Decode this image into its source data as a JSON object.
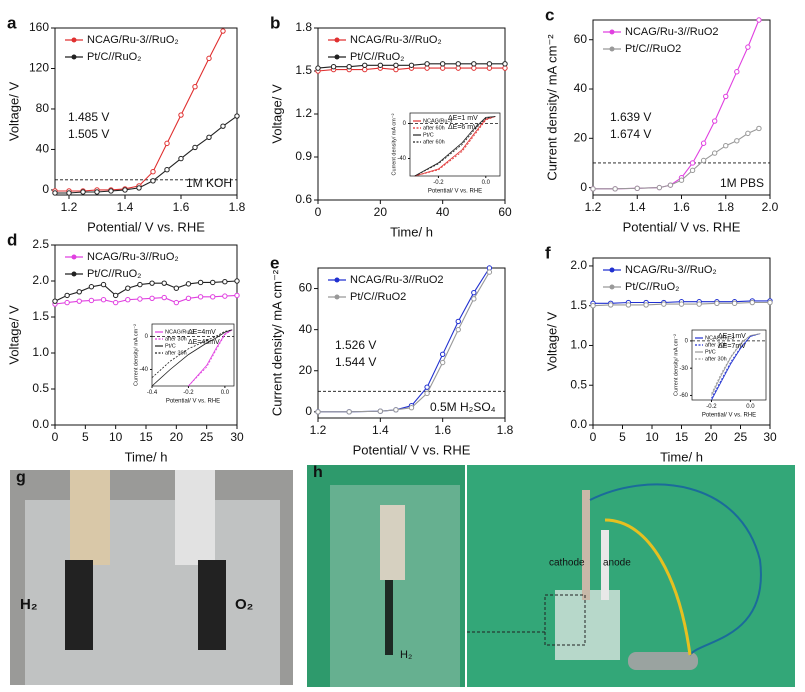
{
  "chart_data": [
    {
      "type": "line",
      "label": "a",
      "xlabel": "Potential/ V vs. RHE",
      "ylabel": "Voltage/ V",
      "xlim": [
        1.15,
        1.8
      ],
      "ylim": [
        -5,
        160
      ],
      "xticks": [
        1.2,
        1.4,
        1.6,
        1.8
      ],
      "yticks": [
        0,
        40,
        80,
        120,
        160
      ],
      "hline": 10,
      "x": [
        1.15,
        1.2,
        1.25,
        1.3,
        1.35,
        1.4,
        1.45,
        1.5,
        1.55,
        1.6,
        1.65,
        1.7,
        1.75,
        1.8
      ],
      "series": [
        {
          "name": "NCAG/Ru-3//RuO₂",
          "color": "#e03030",
          "marker": "circle",
          "values": [
            -1,
            -1,
            -1,
            0,
            0,
            1,
            4,
            18,
            46,
            74,
            102,
            130,
            157,
            null
          ]
        },
        {
          "name": "Pt/C//RuO₂",
          "color": "#222222",
          "marker": "circle",
          "values": [
            -3,
            -3,
            -2,
            -2,
            -1,
            0,
            2,
            9,
            20,
            31,
            42,
            52,
            63,
            73
          ]
        }
      ],
      "annotations": [
        {
          "text": "1.485 V",
          "color": "#e03030"
        },
        {
          "text": "1.505 V",
          "color": "#222222"
        },
        {
          "text": "1M KOH",
          "color": "#222222"
        }
      ]
    },
    {
      "type": "line",
      "label": "b",
      "xlabel": "Time/ h",
      "ylabel": "Voltage/ V",
      "xlim": [
        0,
        60
      ],
      "ylim": [
        0.6,
        1.8
      ],
      "xticks": [
        0,
        20,
        40,
        60
      ],
      "yticks": [
        0.6,
        0.9,
        1.2,
        1.5,
        1.8
      ],
      "x": [
        0,
        5,
        10,
        15,
        20,
        25,
        30,
        35,
        40,
        45,
        50,
        55,
        60
      ],
      "series": [
        {
          "name": "NCAG/Ru-3//RuO₂",
          "color": "#e03030",
          "marker": "circle",
          "values": [
            1.5,
            1.51,
            1.51,
            1.51,
            1.52,
            1.51,
            1.52,
            1.52,
            1.52,
            1.52,
            1.52,
            1.52,
            1.52
          ]
        },
        {
          "name": "Pt/C//RuO₂",
          "color": "#222222",
          "marker": "circle",
          "values": [
            1.52,
            1.53,
            1.53,
            1.54,
            1.54,
            1.54,
            1.54,
            1.55,
            1.55,
            1.55,
            1.55,
            1.55,
            1.55
          ]
        }
      ],
      "inset": {
        "type": "line",
        "xlabel": "Potential/ V vs. RHE",
        "ylabel": "Current density/ mA cm⁻²",
        "xlim": [
          -0.32,
          0.06
        ],
        "ylim": [
          -60,
          12
        ],
        "xticks": [
          -0.2,
          {
            "value": 0,
            "label": "0.0"
          }
        ],
        "yticks": [
          0,
          -40
        ],
        "hline": 0,
        "x": [
          -0.3,
          -0.2,
          -0.1,
          -0.05,
          0,
          0.04
        ],
        "series": [
          {
            "name": "NCAG/Ru-3",
            "color": "#e03030",
            "values": [
              -60,
              -52,
              -30,
              -12,
              5,
              8
            ]
          },
          {
            "name": "after 60h",
            "color": "#e03030",
            "dash": true,
            "values": [
              -60,
              -53,
              -32,
              -14,
              4,
              8
            ]
          },
          {
            "name": "Pt/C",
            "color": "#222222",
            "values": [
              -60,
              -45,
              -22,
              -6,
              7,
              8
            ]
          },
          {
            "name": "after 60h",
            "color": "#222222",
            "dash": true,
            "values": [
              -60,
              -46,
              -24,
              -8,
              6,
              8
            ]
          }
        ],
        "annotations": [
          {
            "text": "ΔE=1 mV",
            "color": "#e03030"
          },
          {
            "text": "ΔE=6 mV",
            "color": "#222222"
          }
        ]
      }
    },
    {
      "type": "line",
      "label": "c",
      "xlabel": "Potential/ V vs. RHE",
      "ylabel": "Current density/ mA cm⁻²",
      "xlim": [
        1.2,
        2.0
      ],
      "ylim": [
        -3,
        68
      ],
      "xticks": [
        1.2,
        1.4,
        1.6,
        1.8,
        {
          "value": 2,
          "label": "2.0"
        }
      ],
      "yticks": [
        0,
        20,
        40,
        60
      ],
      "hline": 10,
      "x": [
        1.2,
        1.3,
        1.4,
        1.5,
        1.55,
        1.6,
        1.65,
        1.7,
        1.75,
        1.8,
        1.85,
        1.9,
        1.95
      ],
      "series": [
        {
          "name": "NCAG/Ru-3//RuO2",
          "color": "#e040e0",
          "marker": "circle",
          "values": [
            -0.5,
            -0.5,
            -0.3,
            0,
            1,
            4,
            10,
            18,
            27,
            37,
            47,
            57,
            68
          ]
        },
        {
          "name": "Pt/C//RuO2",
          "color": "#999999",
          "marker": "circle",
          "values": [
            -0.5,
            -0.5,
            -0.3,
            0,
            1,
            3,
            7,
            11,
            14,
            17,
            19,
            22,
            24
          ]
        }
      ],
      "annotations": [
        {
          "text": "1.639 V",
          "color": "#e040e0"
        },
        {
          "text": "1.674 V",
          "color": "#222222"
        },
        {
          "text": "1M PBS",
          "color": "#222222"
        }
      ]
    },
    {
      "type": "line",
      "label": "d",
      "xlabel": "Time/ h",
      "ylabel": "Voltage/ V",
      "xlim": [
        0,
        30
      ],
      "ylim": [
        0,
        2.5
      ],
      "xticks": [
        0,
        5,
        10,
        15,
        20,
        25,
        30
      ],
      "yticks": [
        {
          "value": 0,
          "label": "0.0"
        },
        0.5,
        {
          "value": 1,
          "label": "1.0"
        },
        1.5,
        {
          "value": 2,
          "label": "2.0"
        },
        2.5
      ],
      "x": [
        0,
        2,
        4,
        6,
        8,
        10,
        12,
        14,
        16,
        18,
        20,
        22,
        24,
        26,
        28,
        30
      ],
      "series": [
        {
          "name": "NCAG/Ru-3//RuO₂",
          "color": "#e040e0",
          "marker": "circle",
          "values": [
            1.68,
            1.7,
            1.72,
            1.73,
            1.74,
            1.7,
            1.74,
            1.75,
            1.76,
            1.77,
            1.7,
            1.76,
            1.78,
            1.78,
            1.79,
            1.8
          ]
        },
        {
          "name": "Pt/C//RuO₂",
          "color": "#222222",
          "marker": "circle",
          "values": [
            1.72,
            1.8,
            1.85,
            1.92,
            1.95,
            1.8,
            1.9,
            1.95,
            1.97,
            1.97,
            1.9,
            1.96,
            1.98,
            1.98,
            1.99,
            2.0
          ]
        }
      ],
      "inset": {
        "type": "line",
        "xlabel": "Potential/ V vs. RHE",
        "ylabel": "Current density/ mA cm⁻²",
        "xlim": [
          -0.4,
          0.05
        ],
        "ylim": [
          -60,
          15
        ],
        "xticks": [
          -0.4,
          -0.2,
          {
            "value": 0,
            "label": "0.0"
          }
        ],
        "yticks": [
          0,
          -40
        ],
        "hline": 0,
        "x": [
          -0.4,
          -0.3,
          -0.2,
          -0.1,
          -0.05,
          0,
          0.04
        ],
        "series": [
          {
            "name": "NCAG/Ru-3",
            "color": "#e040e0",
            "values": [
              null,
              null,
              -60,
              -35,
              -15,
              3,
              8
            ]
          },
          {
            "name": "after 30h",
            "color": "#e040e0",
            "dash": true,
            "values": [
              null,
              null,
              -60,
              -37,
              -17,
              2,
              8
            ]
          },
          {
            "name": "Pt/C",
            "color": "#222222",
            "values": [
              -60,
              -40,
              -22,
              -8,
              -2,
              5,
              8
            ]
          },
          {
            "name": "after 30h",
            "color": "#222222",
            "dash": true,
            "values": [
              -50,
              -30,
              -15,
              -5,
              0,
              6,
              8
            ]
          }
        ],
        "annotations": [
          {
            "text": "ΔE=4mV",
            "color": "#e040e0"
          },
          {
            "text": "ΔE=45mV",
            "color": "#222222"
          }
        ]
      }
    },
    {
      "type": "line",
      "label": "e",
      "xlabel": "Potential/ V vs. RHE",
      "ylabel": "Current density/ mA cm⁻²",
      "xlim": [
        1.2,
        1.8
      ],
      "ylim": [
        -3,
        70
      ],
      "xticks": [
        1.2,
        1.4,
        1.6,
        1.8
      ],
      "yticks": [
        0,
        20,
        40,
        60
      ],
      "hline": 10,
      "x": [
        1.2,
        1.3,
        1.4,
        1.45,
        1.5,
        1.55,
        1.6,
        1.65,
        1.7,
        1.75
      ],
      "series": [
        {
          "name": "NCAG/Ru-3//RuO2",
          "color": "#2030d0",
          "marker": "circle",
          "values": [
            0,
            0,
            0.3,
            1,
            3,
            12,
            28,
            44,
            58,
            70
          ]
        },
        {
          "name": "Pt/C//RuO2",
          "color": "#999999",
          "marker": "circle",
          "values": [
            0,
            0,
            0.3,
            1,
            2,
            9,
            24,
            40,
            55,
            68
          ]
        }
      ],
      "annotations": [
        {
          "text": "1.526 V",
          "color": "#222222"
        },
        {
          "text": "1.544 V",
          "color": "#2030d0"
        },
        {
          "text": "0.5M H₂SO₄",
          "color": "#222222"
        }
      ]
    },
    {
      "type": "line",
      "label": "f",
      "xlabel": "Time/ h",
      "ylabel": "Voltage/ V",
      "xlim": [
        0,
        30
      ],
      "ylim": [
        0,
        2.1
      ],
      "xticks": [
        0,
        5,
        10,
        15,
        20,
        25,
        30
      ],
      "yticks": [
        {
          "value": 0,
          "label": "0.0"
        },
        0.5,
        {
          "value": 1,
          "label": "1.0"
        },
        1.5,
        {
          "value": 2,
          "label": "2.0"
        }
      ],
      "x": [
        0,
        3,
        6,
        9,
        12,
        15,
        18,
        21,
        24,
        27,
        30
      ],
      "series": [
        {
          "name": "NCAG/Ru-3//RuO₂",
          "color": "#2030d0",
          "marker": "circle",
          "values": [
            1.53,
            1.53,
            1.54,
            1.54,
            1.54,
            1.55,
            1.55,
            1.55,
            1.55,
            1.56,
            1.56
          ]
        },
        {
          "name": "Pt/C//RuO₂",
          "color": "#999999",
          "marker": "circle",
          "values": [
            1.5,
            1.51,
            1.51,
            1.51,
            1.52,
            1.52,
            1.52,
            1.53,
            1.53,
            1.54,
            1.54
          ]
        }
      ],
      "inset": {
        "type": "line",
        "xlabel": "Potential/ V vs. RHE",
        "ylabel": "Current density/ mA cm⁻²",
        "xlim": [
          -0.3,
          0.08
        ],
        "ylim": [
          -65,
          12
        ],
        "xticks": [
          -0.2,
          {
            "value": 0,
            "label": "0.0"
          }
        ],
        "yticks": [
          0,
          -30,
          -60
        ],
        "hline": 0,
        "x": [
          -0.3,
          -0.2,
          -0.15,
          -0.1,
          -0.05,
          0,
          0.05
        ],
        "series": [
          {
            "name": "NCAG/Ru-3",
            "color": "#2030d0",
            "values": [
              null,
              -65,
              -45,
              -25,
              -8,
              5,
              8
            ]
          },
          {
            "name": "after 30h",
            "color": "#2030d0",
            "dash": true,
            "values": [
              null,
              -63,
              -43,
              -23,
              -7,
              5,
              8
            ]
          },
          {
            "name": "Pt/C",
            "color": "#999999",
            "values": [
              null,
              -60,
              -38,
              -18,
              -3,
              6,
              8
            ]
          },
          {
            "name": "after 30h",
            "color": "#999999",
            "dash": true,
            "values": [
              null,
              -58,
              -36,
              -17,
              -2,
              6,
              8
            ]
          }
        ],
        "annotations": [
          {
            "text": "ΔE=1mV",
            "color": "#2030d0"
          },
          {
            "text": "ΔE=7mV",
            "color": "#222222"
          }
        ]
      }
    }
  ],
  "photos": [
    {
      "label": "g",
      "captions": [
        "H₂",
        "O₂"
      ]
    },
    {
      "label": "h",
      "captions": [
        "H₂",
        "cathode",
        "anode"
      ]
    }
  ]
}
